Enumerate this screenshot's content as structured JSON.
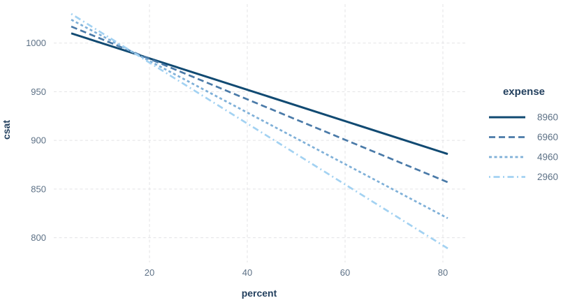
{
  "figure": {
    "background": "#ffffff"
  },
  "colors": {
    "axis_text": "#5d7186",
    "axis_title": "#24415f",
    "grid": "#e3e3e5",
    "background": "#ffffff"
  },
  "chart_data": {
    "type": "line",
    "title": "",
    "xlabel": "percent",
    "ylabel": "csat",
    "x_ticks": [
      20,
      40,
      60,
      80
    ],
    "y_ticks": [
      1000,
      950,
      900,
      850,
      800
    ],
    "x_data_range": [
      4,
      81
    ],
    "ylim": [
      789,
      1030
    ],
    "grid": "dashed-major-only",
    "legend": {
      "title": "expense",
      "position": "right",
      "entries": [
        "8960",
        "6960",
        "4960",
        "2960"
      ]
    },
    "series": [
      {
        "name": "8960",
        "color": "#114a72",
        "linestyle": "solid",
        "dash": "",
        "width": 3,
        "points": [
          [
            4,
            1010
          ],
          [
            81,
            886
          ]
        ]
      },
      {
        "name": "6960",
        "color": "#4a7aa8",
        "linestyle": "dashed",
        "dash": "9 5",
        "width": 2.7,
        "points": [
          [
            4,
            1017
          ],
          [
            81,
            857
          ]
        ]
      },
      {
        "name": "4960",
        "color": "#7fb0d8",
        "linestyle": "shortdash",
        "dash": "4 3.5",
        "width": 2.7,
        "points": [
          [
            4,
            1024
          ],
          [
            81,
            820
          ]
        ]
      },
      {
        "name": "2960",
        "color": "#a3d2f2",
        "linestyle": "dotdash",
        "dash": "2 4.5 9 4.5",
        "width": 2.7,
        "points": [
          [
            4,
            1030
          ],
          [
            81,
            789
          ]
        ]
      }
    ]
  }
}
